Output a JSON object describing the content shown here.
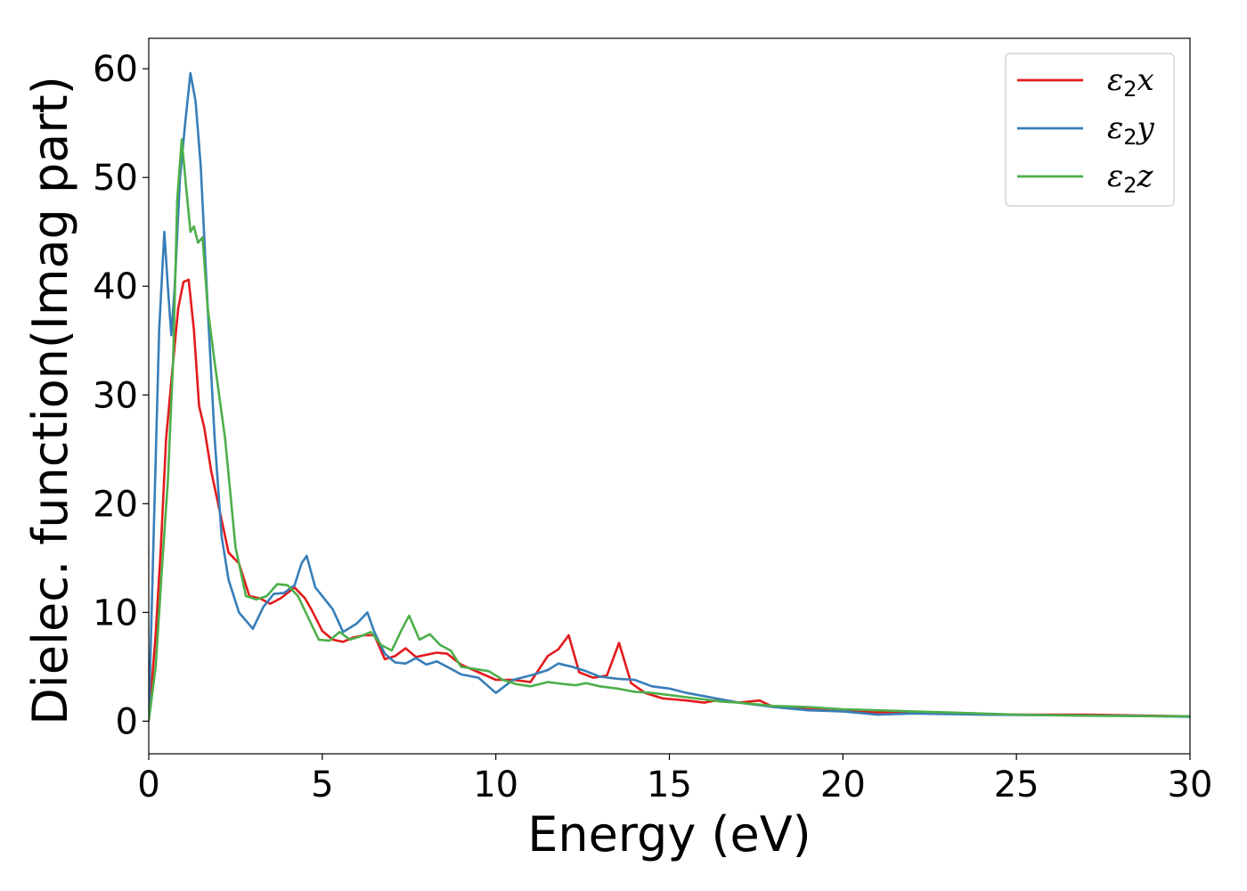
{
  "chart_data": {
    "type": "line",
    "title": "",
    "xlabel": "Energy (eV)",
    "ylabel": "Dielec. function(Imag part)",
    "xlim": [
      0,
      30
    ],
    "ylim": [
      -3,
      62.8
    ],
    "xticks": [
      0,
      5,
      10,
      15,
      20,
      25,
      30
    ],
    "yticks": [
      0,
      10,
      20,
      30,
      40,
      50,
      60
    ],
    "grid": false,
    "legend_position": "top-right",
    "series": [
      {
        "name": "x",
        "symbol": "ε",
        "subscript": "2",
        "color": "#e41a1c",
        "x": [
          0,
          0.2,
          0.35,
          0.5,
          0.7,
          0.85,
          1.0,
          1.15,
          1.3,
          1.45,
          1.6,
          1.8,
          2.0,
          2.3,
          2.6,
          2.9,
          3.2,
          3.5,
          3.8,
          4.0,
          4.2,
          4.5,
          4.7,
          5.0,
          5.3,
          5.6,
          5.9,
          6.2,
          6.5,
          6.8,
          7.1,
          7.4,
          7.7,
          8.0,
          8.3,
          8.6,
          9.0,
          9.5,
          10.0,
          10.5,
          11.0,
          11.5,
          11.8,
          12.1,
          12.4,
          12.8,
          13.2,
          13.55,
          13.9,
          14.3,
          14.8,
          15.5,
          16.0,
          16.5,
          17.0,
          17.6,
          18.0,
          19.0,
          20.0,
          21.0,
          22.0,
          23.0,
          25.0,
          27.0,
          30.0
        ],
        "y": [
          0,
          8,
          16,
          26,
          33,
          38,
          40.4,
          40.6,
          36,
          29,
          27,
          23,
          20,
          15.5,
          14.5,
          11.5,
          11.3,
          10.8,
          11.3,
          11.8,
          12.3,
          11.3,
          10.2,
          8.3,
          7.5,
          7.3,
          7.7,
          7.9,
          7.9,
          5.7,
          6.0,
          6.7,
          5.9,
          6.1,
          6.3,
          6.2,
          5.2,
          4.5,
          3.8,
          3.8,
          3.6,
          6.0,
          6.6,
          7.9,
          4.5,
          4.0,
          4.2,
          7.2,
          3.5,
          2.6,
          2.1,
          1.9,
          1.7,
          2.0,
          1.7,
          1.9,
          1.3,
          1.1,
          0.9,
          0.8,
          0.8,
          0.7,
          0.6,
          0.6,
          0.45
        ]
      },
      {
        "name": "y",
        "symbol": "ε",
        "subscript": "2",
        "color": "#377eb8",
        "x": [
          0,
          0.15,
          0.3,
          0.45,
          0.55,
          0.65,
          0.75,
          0.9,
          1.05,
          1.2,
          1.35,
          1.5,
          1.7,
          1.9,
          2.1,
          2.3,
          2.6,
          3.0,
          3.3,
          3.6,
          3.9,
          4.2,
          4.4,
          4.55,
          4.8,
          5.0,
          5.3,
          5.6,
          6.0,
          6.3,
          6.5,
          6.8,
          7.1,
          7.4,
          7.7,
          8.0,
          8.3,
          8.6,
          9.0,
          9.5,
          10.0,
          10.5,
          11.0,
          11.5,
          11.8,
          12.2,
          12.6,
          13.0,
          13.5,
          14.0,
          14.5,
          15.0,
          15.5,
          16.0,
          16.5,
          17.0,
          18.0,
          19.0,
          20.0,
          21.0,
          22.0,
          24.0,
          26.0,
          28.0,
          30.0
        ],
        "y": [
          0,
          18,
          36,
          45,
          40,
          35.5,
          40,
          50,
          55,
          59.6,
          57,
          51,
          38,
          26,
          17,
          13,
          10,
          8.5,
          10.5,
          11.7,
          11.8,
          12.5,
          14.5,
          15.2,
          12.3,
          11.5,
          10.3,
          8.2,
          9.0,
          10.0,
          8.2,
          6.2,
          5.4,
          5.3,
          5.8,
          5.2,
          5.5,
          5.0,
          4.3,
          4.0,
          2.6,
          3.8,
          4.2,
          4.7,
          5.3,
          5.0,
          4.6,
          4.1,
          3.9,
          3.8,
          3.2,
          3.0,
          2.6,
          2.3,
          2.0,
          1.7,
          1.3,
          1.0,
          0.9,
          0.6,
          0.7,
          0.6,
          0.55,
          0.5,
          0.4
        ]
      },
      {
        "name": "z",
        "symbol": "ε",
        "subscript": "2",
        "color": "#4daf4a",
        "x": [
          0,
          0.2,
          0.4,
          0.55,
          0.7,
          0.82,
          0.95,
          1.08,
          1.2,
          1.3,
          1.42,
          1.55,
          1.7,
          1.9,
          2.2,
          2.5,
          2.8,
          3.1,
          3.4,
          3.7,
          4.0,
          4.3,
          4.6,
          4.9,
          5.2,
          5.5,
          5.8,
          6.1,
          6.4,
          6.7,
          7.0,
          7.3,
          7.5,
          7.8,
          8.1,
          8.4,
          8.7,
          9.0,
          9.4,
          9.8,
          10.2,
          10.6,
          11.0,
          11.5,
          12.0,
          12.3,
          12.6,
          13.0,
          13.5,
          14.0,
          14.5,
          15.0,
          15.5,
          16.0,
          16.5,
          17.0,
          18.0,
          19.0,
          20.0,
          21.0,
          22.0,
          23.0,
          25.0,
          27.0,
          30.0
        ],
        "y": [
          0,
          5,
          15,
          22,
          33,
          48,
          53.5,
          49,
          45,
          45.5,
          44,
          44.5,
          38,
          33,
          26,
          16,
          11.5,
          11.2,
          11.5,
          12.6,
          12.5,
          11.5,
          9.5,
          7.5,
          7.4,
          8.2,
          7.5,
          7.8,
          8.2,
          7.0,
          6.5,
          8.5,
          9.7,
          7.5,
          8.0,
          7.0,
          6.5,
          5.0,
          4.8,
          4.6,
          3.8,
          3.4,
          3.2,
          3.6,
          3.4,
          3.3,
          3.5,
          3.2,
          3.0,
          2.7,
          2.6,
          2.4,
          2.2,
          2.0,
          1.8,
          1.7,
          1.4,
          1.3,
          1.1,
          1.0,
          0.9,
          0.8,
          0.6,
          0.5,
          0.45
        ]
      }
    ]
  }
}
